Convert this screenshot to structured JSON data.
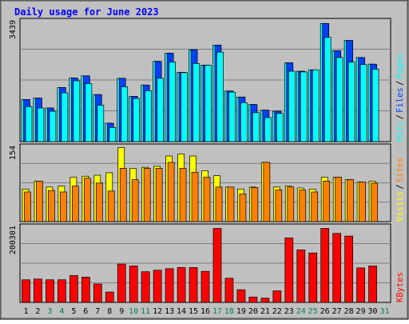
{
  "title": "Daily usage for June 2023",
  "colors": {
    "frame_bg": "#c0c0c0",
    "panel_bg": "#c0c0c0",
    "title": "#0000ff",
    "hits": "#00ffff",
    "files": "#0040ff",
    "pages": "#00ffff",
    "visits": "#ffff00",
    "sites": "#ff8000",
    "kbytes": "#ff0000",
    "day_weekday": "#000000",
    "day_weekend": "#00805c",
    "bar_outline": "#000000",
    "divider": "#ffffff"
  },
  "chart_data": {
    "type": "bar",
    "title": "Daily usage for June 2023",
    "categories": [
      "1",
      "2",
      "3",
      "4",
      "5",
      "6",
      "7",
      "8",
      "9",
      "10",
      "11",
      "12",
      "13",
      "14",
      "15",
      "16",
      "17",
      "18",
      "19",
      "20",
      "21",
      "22",
      "23",
      "24",
      "25",
      "26",
      "27",
      "28",
      "29",
      "30",
      "31"
    ],
    "weekend_days": [
      "3",
      "4",
      "10",
      "11",
      "17",
      "18",
      "24",
      "25",
      "31"
    ],
    "panels": [
      {
        "name": "top",
        "y_max_label": "3439",
        "ylim": [
          0,
          3439
        ],
        "legend": [
          {
            "text": "Hits",
            "color_key": "hits"
          },
          {
            "text": "Files",
            "color_key": "files"
          },
          {
            "text": "Pages",
            "color_key": "pages"
          }
        ],
        "series": [
          {
            "name": "Hits",
            "color_key": "hits",
            "values": [
              1190,
              1230,
              950,
              1530,
              1800,
              1860,
              1330,
              520,
              1790,
              1280,
              1600,
              2270,
              2500,
              1960,
              2600,
              2160,
              2730,
              1430,
              1260,
              1050,
              890,
              860,
              2230,
              1990,
              2030,
              3340,
              2570,
              2860,
              2380,
              2190,
              null
            ]
          },
          {
            "name": "Files",
            "color_key": "files",
            "values": [
              1190,
              1230,
              950,
              1530,
              1800,
              1860,
              1330,
              520,
              1790,
              1280,
              1600,
              2270,
              2500,
              1960,
              2600,
              2160,
              2730,
              1430,
              1260,
              1050,
              890,
              860,
              2230,
              1990,
              2030,
              3340,
              2570,
              2860,
              2380,
              2190,
              null
            ]
          },
          {
            "name": "Pages",
            "color_key": "pages",
            "values": [
              990,
              950,
              860,
              1380,
              1720,
              1640,
              1030,
              400,
              1550,
              1220,
              1440,
              1790,
              2250,
              1950,
              2210,
              2160,
              2530,
              1400,
              1100,
              820,
              680,
              800,
              1990,
              1970,
              2030,
              2950,
              2380,
              2250,
              2180,
              2050,
              null
            ]
          }
        ]
      },
      {
        "name": "middle",
        "y_max_label": "154",
        "ylim": [
          0,
          154
        ],
        "legend": [
          {
            "text": "Visits",
            "color_key": "visits"
          },
          {
            "text": "Sites",
            "color_key": "sites"
          }
        ],
        "series": [
          {
            "name": "Visits",
            "color_key": "visits",
            "values": [
              66,
              82,
              70,
              72,
              90,
              92,
              94,
              99,
              150,
              108,
              110,
              112,
              133,
              137,
              133,
              103,
              93,
              70,
              66,
              70,
              120,
              70,
              72,
              68,
              66,
              90,
              90,
              85,
              80,
              82,
              null
            ]
          },
          {
            "name": "Sites",
            "color_key": "sites",
            "values": [
              60,
              82,
              63,
              60,
              72,
              88,
              78,
              62,
              108,
              85,
              108,
              108,
              120,
              108,
              100,
              90,
              70,
              70,
              56,
              69,
              120,
              64,
              70,
              64,
              60,
              82,
              90,
              85,
              80,
              78,
              null
            ]
          }
        ]
      },
      {
        "name": "bottom",
        "y_max_label": "200301",
        "ylim": [
          0,
          200301
        ],
        "legend": [
          {
            "text": "KBytes",
            "color_key": "kbytes"
          }
        ],
        "series": [
          {
            "name": "KBytes",
            "color_key": "kbytes",
            "values": [
              59000,
              61000,
              59000,
              59000,
              70000,
              66000,
              48000,
              27000,
              100000,
              95000,
              80000,
              84000,
              88000,
              91000,
              91000,
              81000,
              193000,
              63000,
              33000,
              14000,
              11000,
              30000,
              168000,
              137000,
              129000,
              193000,
              180000,
              173000,
              90000,
              95000,
              null
            ]
          }
        ]
      }
    ]
  }
}
